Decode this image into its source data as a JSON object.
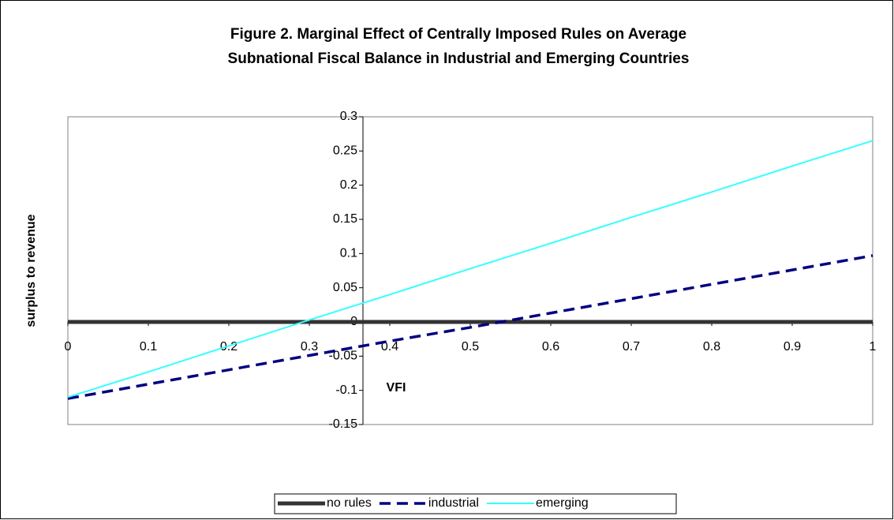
{
  "chart_data": {
    "type": "line",
    "title": [
      "Figure 2. Marginal Effect of Centrally Imposed Rules on Average",
      "Subnational Fiscal Balance in Industrial and Emerging Countries"
    ],
    "xlabel": "VFI",
    "ylabel": "surplus to revenue",
    "x": [
      0,
      0.1,
      0.2,
      0.3,
      0.4,
      0.5,
      0.6,
      0.7,
      0.8,
      0.9,
      1
    ],
    "series": [
      {
        "name": "no rules",
        "color": "#333333",
        "style": "solid-thick",
        "values": [
          0,
          0,
          0,
          0,
          0,
          0,
          0,
          0,
          0,
          0,
          0
        ]
      },
      {
        "name": "industrial",
        "color": "#000080",
        "style": "dashed",
        "values": [
          -0.112,
          -0.091,
          -0.07,
          -0.049,
          -0.028,
          -0.008,
          0.013,
          0.034,
          0.055,
          0.076,
          0.097
        ]
      },
      {
        "name": "emerging",
        "color": "#33ffff",
        "style": "solid",
        "values": [
          -0.11,
          -0.073,
          -0.035,
          0.003,
          0.04,
          0.078,
          0.115,
          0.153,
          0.19,
          0.228,
          0.265
        ]
      }
    ],
    "xlim": [
      0,
      1
    ],
    "xticks": [
      0,
      0.1,
      0.2,
      0.3,
      0.4,
      0.5,
      0.6,
      0.7,
      0.8,
      0.9,
      1
    ],
    "ylim": [
      -0.15,
      0.3
    ],
    "yticks": [
      0.3,
      0.25,
      0.2,
      0.15,
      0.1,
      0.05,
      0,
      -0.05,
      -0.1,
      -0.15
    ],
    "legend": "bottom"
  }
}
